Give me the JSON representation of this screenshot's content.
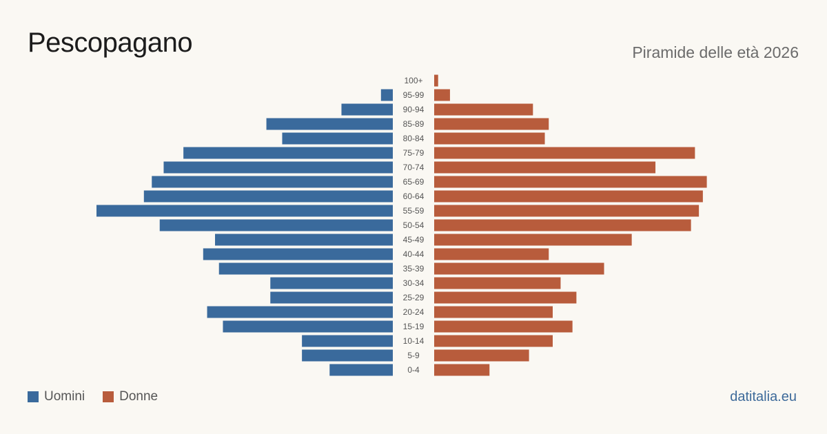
{
  "header": {
    "title": "Pescopagano",
    "subtitle": "Piramide delle età 2026"
  },
  "legend": {
    "men_label": "Uomini",
    "women_label": "Donne"
  },
  "brand": "datitalia.eu",
  "colors": {
    "men": "#3a6a9c",
    "women": "#b85c3c",
    "background": "#faf8f3"
  },
  "chart_data": {
    "type": "bar",
    "orientation": "horizontal",
    "categories": [
      "100+",
      "95-99",
      "90-94",
      "85-89",
      "80-84",
      "75-79",
      "70-74",
      "65-69",
      "60-64",
      "55-59",
      "50-54",
      "45-49",
      "40-44",
      "35-39",
      "30-34",
      "25-29",
      "20-24",
      "15-19",
      "10-14",
      "5-9",
      "0-4"
    ],
    "series": [
      {
        "name": "Uomini",
        "values": [
          0,
          3,
          13,
          32,
          28,
          53,
          58,
          61,
          63,
          75,
          59,
          45,
          48,
          44,
          31,
          31,
          47,
          43,
          23,
          23,
          16
        ]
      },
      {
        "name": "Donne",
        "values": [
          1,
          4,
          25,
          29,
          28,
          66,
          56,
          69,
          68,
          67,
          65,
          50,
          29,
          43,
          32,
          36,
          30,
          35,
          30,
          24,
          14
        ]
      }
    ],
    "xlim": [
      0,
      75
    ],
    "grid": false,
    "legend_position": "bottom-left"
  }
}
